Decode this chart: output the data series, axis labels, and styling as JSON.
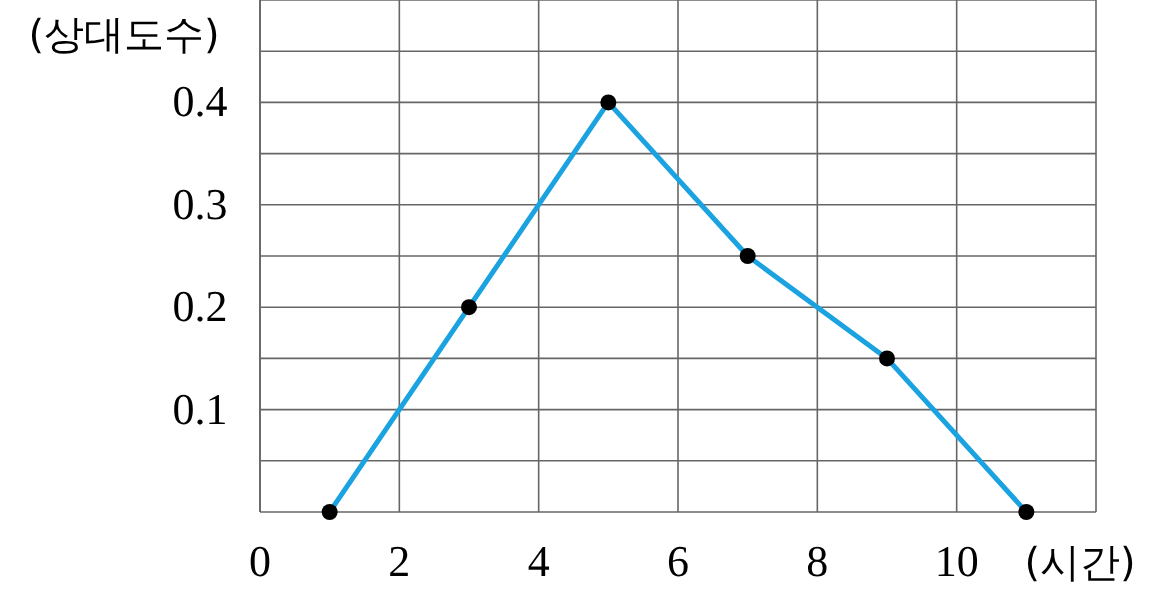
{
  "chart_data": {
    "type": "line",
    "xlabel": "(시간)",
    "ylabel": "(상대도수)",
    "x": [
      1,
      3,
      5,
      7,
      9,
      11
    ],
    "series": [
      {
        "color": "#1aa3e0",
        "values": [
          0,
          0.2,
          0.4,
          0.25,
          0.15,
          0
        ]
      }
    ],
    "xlim": [
      0,
      12
    ],
    "ylim": [
      0,
      0.5
    ],
    "xticks": [
      0,
      2,
      4,
      6,
      8,
      10,
      {
        "value": 12,
        "label": null
      }
    ],
    "yticks": [
      {
        "value": 0.05,
        "label": null
      },
      0.1,
      {
        "value": 0.15,
        "label": null
      },
      0.2,
      {
        "value": 0.25,
        "label": null
      },
      0.3,
      {
        "value": 0.35,
        "label": null
      },
      0.4,
      {
        "value": 0.45,
        "label": null
      },
      {
        "value": 0.5,
        "label": null
      }
    ],
    "grid": true,
    "marker": "circle",
    "line_style": "solid"
  }
}
